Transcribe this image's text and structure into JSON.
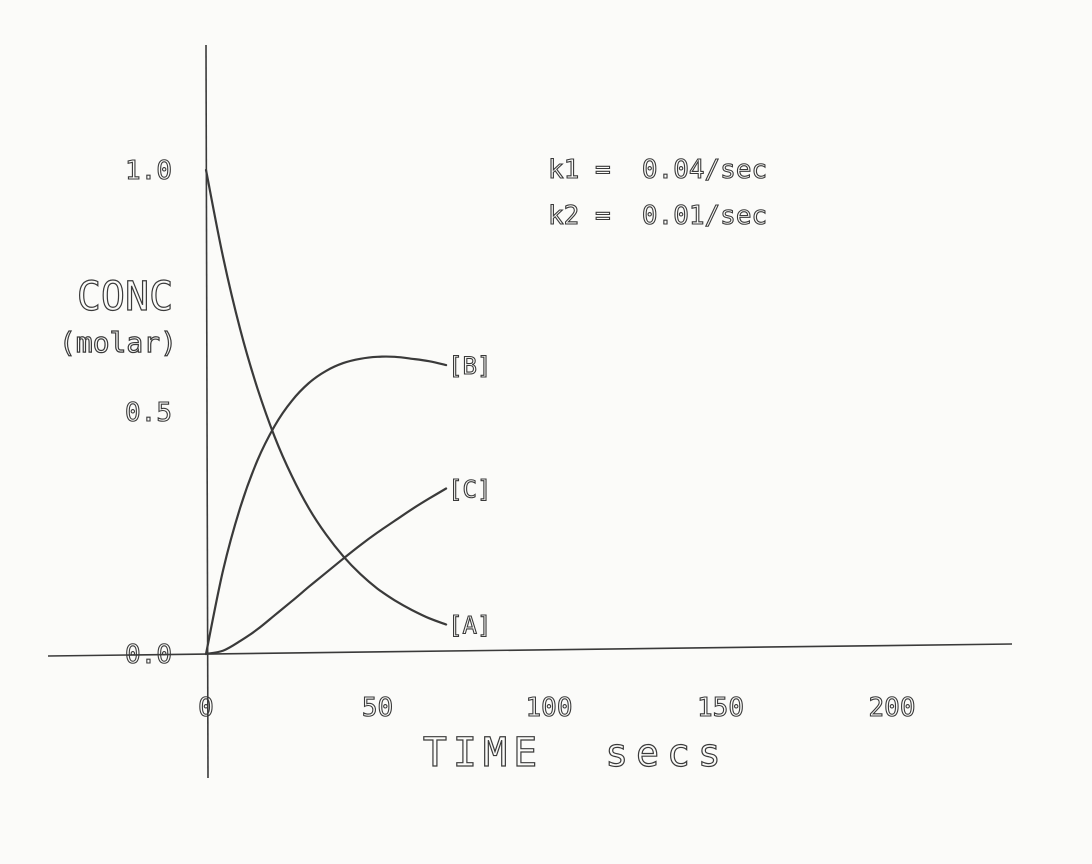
{
  "chart_data": {
    "type": "line",
    "title": "",
    "xlabel": "TIME secs",
    "ylabel": "CONC (molar)",
    "ylabel_lines": [
      "CONC",
      "(molar)"
    ],
    "xlabel_parts": [
      "TIME",
      "secs"
    ],
    "xlim": [
      0,
      230
    ],
    "ylim": [
      0,
      1.0
    ],
    "grid": false,
    "x_ticks": [
      {
        "value": 0,
        "label": "0"
      },
      {
        "value": 50,
        "label": "50"
      },
      {
        "value": 100,
        "label": "100"
      },
      {
        "value": 150,
        "label": "150"
      },
      {
        "value": 200,
        "label": "200"
      }
    ],
    "y_ticks": [
      {
        "value": 0,
        "label": "0.0"
      },
      {
        "value": 0.5,
        "label": "0.5"
      },
      {
        "value": 1.0,
        "label": "1.0"
      }
    ],
    "annotations": [
      "k1 =  0.04/sec",
      "k2 =  0.01/sec"
    ],
    "x": [
      0,
      5,
      10,
      15,
      20,
      25,
      30,
      35,
      40,
      45,
      50,
      55,
      60,
      65,
      70
    ],
    "series": [
      {
        "name": "[A]",
        "values": [
          1.0,
          0.819,
          0.67,
          0.549,
          0.449,
          0.368,
          0.301,
          0.247,
          0.202,
          0.165,
          0.135,
          0.111,
          0.091,
          0.074,
          0.061
        ]
      },
      {
        "name": "[B]",
        "values": [
          0.0,
          0.174,
          0.303,
          0.4,
          0.471,
          0.523,
          0.56,
          0.585,
          0.601,
          0.61,
          0.614,
          0.614,
          0.61,
          0.605,
          0.597
        ]
      },
      {
        "name": "[C]",
        "values": [
          0.0,
          0.007,
          0.027,
          0.051,
          0.08,
          0.109,
          0.139,
          0.168,
          0.197,
          0.225,
          0.251,
          0.275,
          0.299,
          0.321,
          0.342
        ]
      }
    ]
  }
}
